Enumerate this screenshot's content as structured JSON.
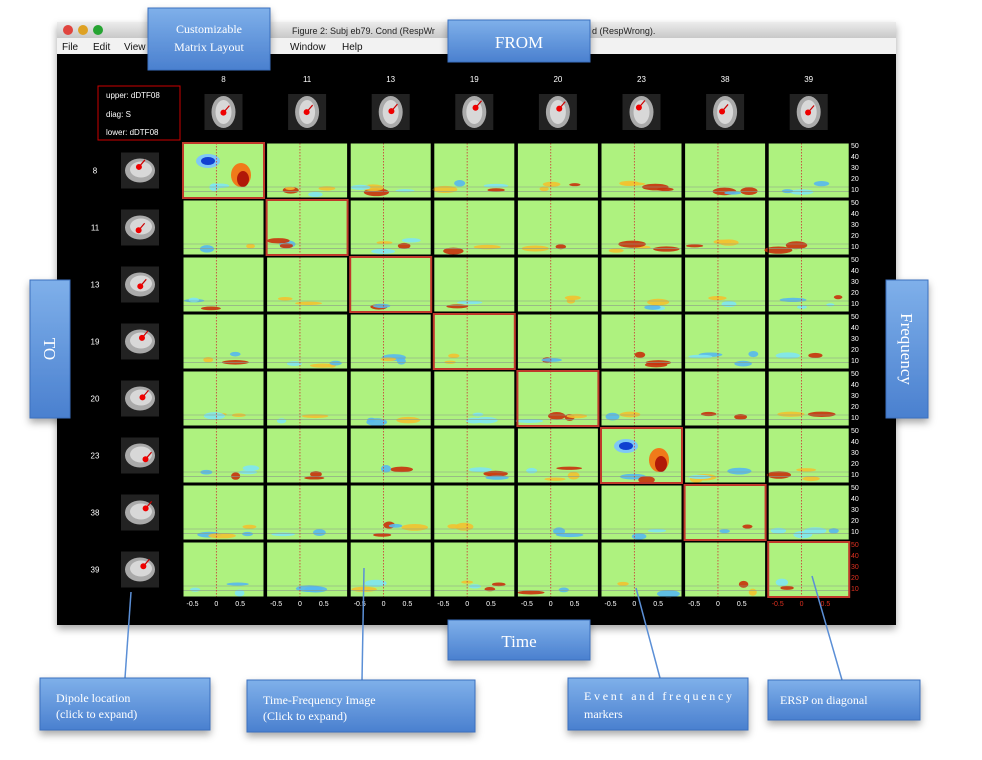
{
  "window": {
    "title_left": "Figure 2: Subj eb79. Cond (RespWr",
    "title_right": "d (RespWrong).",
    "menu": [
      "File",
      "Edit",
      "View",
      "p",
      "Window",
      "Help"
    ]
  },
  "legend": [
    "upper: dDTF08",
    "diag: S",
    "lower: dDTF08"
  ],
  "matrix": {
    "components": [
      8,
      11,
      13,
      19,
      20,
      23,
      38,
      39
    ],
    "time_axis": {
      "lim": [
        -0.7,
        1.0
      ],
      "ticks": [
        -0.5,
        0,
        0.5
      ]
    },
    "freq_axis": {
      "lim": [
        2,
        52
      ],
      "ticks": [
        50,
        40,
        30,
        20,
        10
      ]
    }
  },
  "callouts": {
    "layout": [
      "Customizable",
      "Matrix Layout"
    ],
    "from": "FROM",
    "to": "TO",
    "frequency": "Frequency",
    "time": "Time",
    "dipole": [
      "Dipole location",
      "(click to expand)"
    ],
    "tf_image": [
      "Time-Frequency Image",
      "(Click to expand)"
    ],
    "events": [
      "Event and frequency",
      "markers"
    ],
    "ersp": "ERSP on diagonal"
  }
}
